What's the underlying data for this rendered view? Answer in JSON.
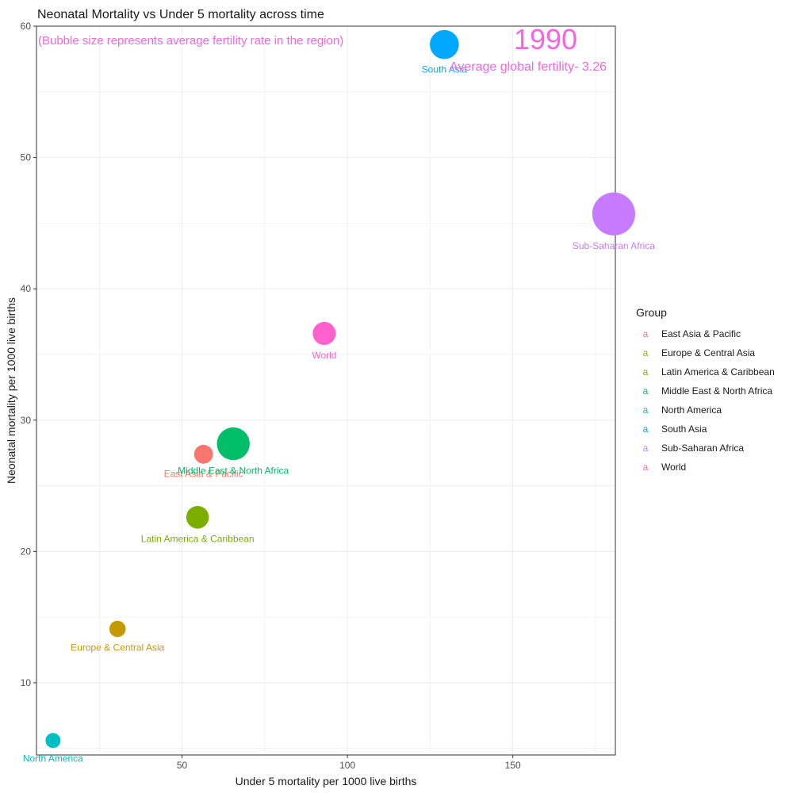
{
  "chart_data": {
    "type": "scatter",
    "title": "Neonatal Mortality vs Under 5 mortality across time",
    "subtitle": "(Bubble size represents average fertility rate in the region)",
    "xlabel": "Under 5 mortality per 1000 live births",
    "ylabel": "Neonatal mortality per 1000 live births",
    "xlim": [
      6,
      181
    ],
    "ylim": [
      4.5,
      60
    ],
    "x_ticks": [
      50,
      100,
      150
    ],
    "y_ticks": [
      10,
      20,
      30,
      40,
      50,
      60
    ],
    "grid": true,
    "legend_title": "Group",
    "legend_position": "right",
    "year_label": "1990",
    "fertility_label": "Average global fertility- 3.26",
    "annotation_color": "#F564E3",
    "points": [
      {
        "group": "East Asia & Pacific",
        "x": 56.5,
        "y": 27.4,
        "fertility": 2.6,
        "color": "#F8766D"
      },
      {
        "group": "Europe & Central Asia",
        "x": 30.5,
        "y": 14.1,
        "fertility": 2.2,
        "color": "#C49A00"
      },
      {
        "group": "Latin America & Caribbean",
        "x": 54.7,
        "y": 22.6,
        "fertility": 3.2,
        "color": "#7CAE00"
      },
      {
        "group": "Middle East & North Africa",
        "x": 65.5,
        "y": 28.2,
        "fertility": 4.8,
        "color": "#00BE67"
      },
      {
        "group": "North America",
        "x": 11.0,
        "y": 5.6,
        "fertility": 2.0,
        "color": "#00BFC4"
      },
      {
        "group": "South Asia",
        "x": 129.3,
        "y": 58.6,
        "fertility": 4.2,
        "color": "#00A9FF"
      },
      {
        "group": "Sub-Saharan Africa",
        "x": 180.5,
        "y": 45.7,
        "fertility": 6.4,
        "color": "#C77CFF"
      },
      {
        "group": "World",
        "x": 93.0,
        "y": 36.6,
        "fertility": 3.26,
        "color": "#FF61CC"
      }
    ],
    "legend": [
      {
        "label": "East Asia & Pacific",
        "color": "#F8766D"
      },
      {
        "label": "Europe & Central Asia",
        "color": "#C49A00"
      },
      {
        "label": "Latin America & Caribbean",
        "color": "#7CAE00"
      },
      {
        "label": "Middle East & North Africa",
        "color": "#00BE67"
      },
      {
        "label": "North America",
        "color": "#00BFC4"
      },
      {
        "label": "South Asia",
        "color": "#00A9FF"
      },
      {
        "label": "Sub-Saharan Africa",
        "color": "#C77CFF"
      },
      {
        "label": "World",
        "color": "#FF61CC"
      }
    ],
    "legend_key_glyph": "a"
  }
}
